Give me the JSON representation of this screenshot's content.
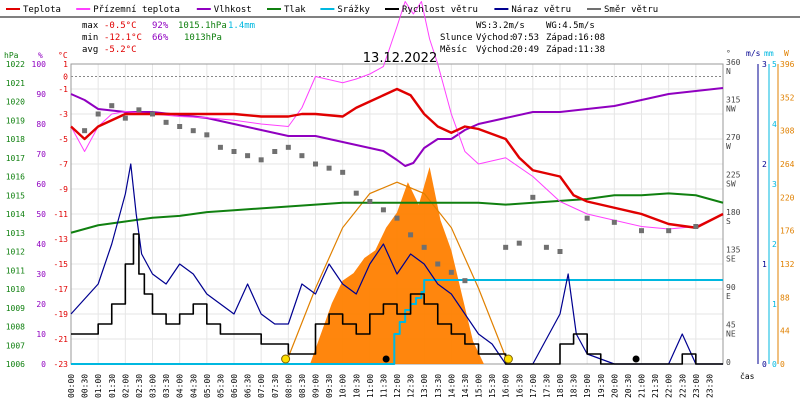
{
  "chart_data": {
    "type": "line",
    "title": "13.12.2022",
    "legend": [
      {
        "label": "Teplota",
        "color": "#e00000"
      },
      {
        "label": "Přízemní teplota",
        "color": "#ff40ff"
      },
      {
        "label": "Vlhkost",
        "color": "#9000c0"
      },
      {
        "label": "Tlak",
        "color": "#108010"
      },
      {
        "label": "Srážky",
        "color": "#00b8e0"
      },
      {
        "label": "Rychlost větru",
        "color": "#000000"
      },
      {
        "label": "Náraz větru",
        "color": "#000090"
      },
      {
        "label": "Směr větru",
        "color": "#707070"
      }
    ],
    "stats": {
      "max": {
        "label": "max",
        "temp": "-0.5°C",
        "hum": "92%",
        "press": "1015.1hPa",
        "rain": "1.4mm"
      },
      "min": {
        "label": "min",
        "temp": "-12.1°C",
        "hum": "66%",
        "press": "1013hPa"
      },
      "avg": {
        "label": "avg",
        "temp": "-5.2°C"
      },
      "ws": "WS:3.2m/s",
      "wg": "WG:4.5m/s",
      "slunce_label": "Slunce",
      "vychod_label": "Východ:",
      "zapad_label": "Západ:",
      "sunrise": "07:53",
      "sunset": "16:08",
      "mesic_label": "Měsíc",
      "moonrise": "20:49",
      "moonset": "11:38"
    },
    "axes": {
      "hpa_title": "hPa",
      "pct_title": "%",
      "c_title": "°C",
      "deg_title": "°",
      "ms_title": "m/s",
      "mm_title": "mm",
      "w_title": "W",
      "cas_label": "čas",
      "hpa_ticks": [
        "1022",
        "1021",
        "1020",
        "1019",
        "1018",
        "1017",
        "1016",
        "1015",
        "1014",
        "1013",
        "1012",
        "1011",
        "1010",
        "1009",
        "1008",
        "1007",
        "1006"
      ],
      "pct_ticks": [
        "100",
        "90",
        "80",
        "70",
        "60",
        "50",
        "40",
        "30",
        "20",
        "10",
        "0"
      ],
      "c_ticks": [
        "1",
        "-1",
        "-3",
        "-5",
        "-7",
        "-9",
        "-11",
        "-13",
        "-15",
        "-17",
        "-19",
        "-21",
        "-23"
      ],
      "c_extra": [
        "0"
      ],
      "c_bounds": [
        1.0,
        -23.0
      ],
      "deg_ticks": [
        "360",
        "315",
        "270",
        "225",
        "180",
        "135",
        "90",
        "45",
        "0"
      ],
      "dir_ticks": [
        "N",
        "NW",
        "W",
        "SW",
        "S",
        "SE",
        "E",
        "NE",
        ""
      ],
      "ms_ticks": [
        "3",
        "2",
        "1",
        "0"
      ],
      "mm_ticks": [
        "5",
        "4",
        "3",
        "2",
        "1",
        "0"
      ],
      "w_ticks": [
        "396",
        "352",
        "308",
        "264",
        "220",
        "176",
        "132",
        "88",
        "44",
        "0"
      ],
      "time_labels": [
        "00:00",
        "00:30",
        "01:00",
        "01:30",
        "02:00",
        "02:30",
        "03:00",
        "03:30",
        "04:00",
        "04:30",
        "05:00",
        "05:30",
        "06:00",
        "06:30",
        "07:00",
        "07:30",
        "08:00",
        "08:30",
        "09:00",
        "09:30",
        "10:00",
        "10:30",
        "11:00",
        "11:30",
        "12:00",
        "12:30",
        "13:00",
        "13:30",
        "14:00",
        "14:30",
        "15:00",
        "15:30",
        "16:00",
        "16:30",
        "17:00",
        "17:30",
        "18:00",
        "18:30",
        "19:00",
        "19:30",
        "20:00",
        "20:30",
        "21:00",
        "21:30",
        "22:00",
        "22:30",
        "23:00",
        "23:30"
      ]
    },
    "series": {
      "teplota": {
        "x": [
          0.0,
          0.5,
          1.0,
          1.5,
          2.0,
          3.0,
          4.0,
          5.0,
          6.0,
          7.0,
          8.0,
          8.5,
          9.0,
          10.0,
          10.5,
          11.0,
          11.5,
          12.0,
          12.5,
          13.0,
          13.5,
          14.0,
          14.5,
          15.0,
          16.0,
          16.5,
          17.0,
          18.0,
          18.5,
          19.0,
          20.0,
          21.0,
          22.0,
          23.0,
          24.0
        ],
        "y": [
          -4.0,
          -5.0,
          -4.0,
          -3.5,
          -3.0,
          -3.0,
          -3.0,
          -3.0,
          -3.0,
          -3.2,
          -3.2,
          -3.0,
          -3.0,
          -3.2,
          -2.5,
          -2.0,
          -1.5,
          -1.0,
          -1.5,
          -3.0,
          -4.0,
          -4.5,
          -4.0,
          -4.2,
          -5.0,
          -6.5,
          -7.5,
          -8.0,
          -9.5,
          -10.0,
          -10.5,
          -11.0,
          -11.8,
          -12.1,
          -11.0
        ]
      },
      "prizemni": {
        "x": [
          0.0,
          0.5,
          1.0,
          1.5,
          2.0,
          3.0,
          4.0,
          5.0,
          6.0,
          7.0,
          8.0,
          8.5,
          9.0,
          10.0,
          10.5,
          11.0,
          11.5,
          12.0,
          12.3,
          12.6,
          12.9,
          13.2,
          13.5,
          14.0,
          14.5,
          15.0,
          16.0,
          17.0,
          18.0,
          19.0,
          20.0,
          21.0,
          22.0,
          23.0,
          24.0
        ],
        "y": [
          -4.0,
          -6.0,
          -4.0,
          -3.0,
          -2.8,
          -3.0,
          -3.2,
          -3.3,
          -3.5,
          -3.8,
          -4.0,
          -2.5,
          0.0,
          -0.5,
          -0.2,
          0.2,
          0.8,
          4.0,
          6.0,
          5.0,
          6.0,
          3.0,
          1.0,
          -3.0,
          -6.0,
          -7.0,
          -6.5,
          -8.0,
          -10.0,
          -11.0,
          -11.5,
          -12.0,
          -12.2,
          -12.0,
          -11.0
        ]
      },
      "vlhkost": {
        "x": [
          0.0,
          0.5,
          1.0,
          2.0,
          3.0,
          4.0,
          5.0,
          6.0,
          7.0,
          8.0,
          8.5,
          9.0,
          10.0,
          11.0,
          11.5,
          12.0,
          12.3,
          12.6,
          13.0,
          13.5,
          14.0,
          14.5,
          15.0,
          16.0,
          17.0,
          18.0,
          19.0,
          20.0,
          21.0,
          22.0,
          23.0,
          24.0
        ],
        "y": [
          90,
          88,
          85,
          84,
          84,
          83,
          82,
          80,
          78,
          76,
          76,
          76,
          74,
          72,
          71,
          68,
          66,
          67,
          72,
          75,
          75,
          78,
          80,
          82,
          84,
          84,
          85,
          86,
          88,
          90,
          91,
          92
        ]
      },
      "tlak": {
        "x": [
          0.0,
          1.0,
          2.0,
          3.0,
          4.0,
          5.0,
          6.0,
          7.0,
          8.0,
          9.0,
          10.0,
          11.0,
          12.0,
          13.0,
          14.0,
          15.0,
          16.0,
          17.0,
          18.0,
          19.0,
          20.0,
          21.0,
          22.0,
          23.0,
          24.0
        ],
        "y": [
          1013.0,
          1013.4,
          1013.6,
          1013.8,
          1013.9,
          1014.1,
          1014.2,
          1014.3,
          1014.4,
          1014.5,
          1014.6,
          1014.6,
          1014.6,
          1014.6,
          1014.6,
          1014.6,
          1014.5,
          1014.6,
          1014.7,
          1014.8,
          1015.0,
          1015.0,
          1015.1,
          1015.0,
          1014.6
        ]
      },
      "srazky": {
        "x": [
          0.0,
          11.8,
          11.9,
          12.1,
          12.3,
          12.5,
          12.7,
          12.9,
          13.0,
          24.0
        ],
        "y": [
          0.0,
          0.0,
          0.5,
          0.7,
          0.9,
          1.0,
          1.1,
          1.2,
          1.4,
          1.4
        ]
      },
      "rychlost": {
        "x": [
          0.0,
          1.0,
          1.5,
          2.0,
          2.3,
          2.5,
          2.7,
          3.0,
          3.5,
          4.0,
          4.5,
          5.0,
          5.5,
          6.0,
          7.0,
          8.0,
          9.0,
          9.5,
          10.0,
          10.5,
          11.0,
          11.5,
          12.0,
          12.5,
          13.0,
          13.5,
          14.0,
          14.5,
          15.0,
          16.0,
          17.0,
          18.0,
          18.5,
          19.0,
          19.5,
          20.0,
          22.0,
          22.5,
          23.0,
          24.0
        ],
        "y": [
          0.3,
          0.4,
          0.6,
          1.0,
          1.3,
          0.9,
          0.7,
          0.5,
          0.4,
          0.5,
          0.6,
          0.4,
          0.3,
          0.3,
          0.2,
          0.1,
          0.4,
          0.5,
          0.4,
          0.3,
          0.5,
          0.6,
          0.5,
          0.7,
          0.6,
          0.4,
          0.3,
          0.2,
          0.1,
          0.0,
          0.0,
          0.2,
          0.3,
          0.1,
          0.0,
          0.0,
          0.0,
          0.1,
          0.0,
          0.0
        ]
      },
      "naraz": {
        "x": [
          0.0,
          1.0,
          1.5,
          2.0,
          2.2,
          2.4,
          2.6,
          3.0,
          3.5,
          4.0,
          4.5,
          5.0,
          5.5,
          6.0,
          6.5,
          7.0,
          7.5,
          8.0,
          8.5,
          9.0,
          9.5,
          10.0,
          10.5,
          11.0,
          11.5,
          12.0,
          12.5,
          13.0,
          13.5,
          14.0,
          14.5,
          15.0,
          15.5,
          16.0,
          17.0,
          18.0,
          18.3,
          18.6,
          19.0,
          20.0,
          22.0,
          22.5,
          23.0,
          24.0
        ],
        "y": [
          0.5,
          0.8,
          1.2,
          1.7,
          2.0,
          1.5,
          1.1,
          0.9,
          0.8,
          1.0,
          0.9,
          0.7,
          0.6,
          0.5,
          0.8,
          0.5,
          0.4,
          0.4,
          0.8,
          0.7,
          1.0,
          0.8,
          0.7,
          1.0,
          1.2,
          0.9,
          1.1,
          1.0,
          0.8,
          0.7,
          0.5,
          0.3,
          0.2,
          0.0,
          0.0,
          0.5,
          0.9,
          0.3,
          0.1,
          0.0,
          0.0,
          0.3,
          0.0,
          0.0
        ]
      },
      "smer": {
        "x": [
          0.5,
          1.0,
          1.5,
          2.0,
          2.5,
          3.0,
          3.5,
          4.0,
          4.5,
          5.0,
          5.5,
          6.0,
          6.5,
          7.0,
          7.5,
          8.0,
          8.5,
          9.0,
          9.5,
          10.0,
          10.5,
          11.0,
          11.5,
          12.0,
          12.5,
          13.0,
          13.5,
          14.0,
          14.5,
          16.0,
          16.5,
          17.0,
          17.5,
          18.0,
          19.0,
          20.0,
          21.0,
          22.0,
          23.0
        ],
        "y": [
          280,
          300,
          310,
          295,
          305,
          300,
          290,
          285,
          280,
          275,
          260,
          255,
          250,
          245,
          255,
          260,
          250,
          240,
          235,
          230,
          205,
          195,
          185,
          175,
          155,
          140,
          120,
          110,
          100,
          140,
          145,
          200,
          140,
          135,
          175,
          170,
          160,
          160,
          165
        ]
      },
      "sluneni": {
        "x": [
          8.8,
          9.2,
          9.6,
          10.0,
          10.4,
          10.8,
          11.2,
          11.6,
          12.0,
          12.4,
          12.8,
          13.2,
          13.6,
          14.0,
          14.4,
          14.8,
          15.2
        ],
        "y": [
          0,
          40,
          80,
          110,
          120,
          140,
          150,
          180,
          200,
          240,
          210,
          260,
          190,
          150,
          90,
          30,
          0
        ]
      },
      "sluneni_max": {
        "x": [
          7.9,
          9.0,
          10.0,
          11.0,
          12.0,
          13.0,
          14.0,
          15.0,
          16.1
        ],
        "y": [
          0,
          100,
          180,
          225,
          240,
          225,
          180,
          100,
          0
        ]
      }
    },
    "markers": {
      "sunrise_x": 7.9,
      "sunset_x": 16.1,
      "moonrise_x": 20.8,
      "moonset_x": 11.6
    }
  }
}
